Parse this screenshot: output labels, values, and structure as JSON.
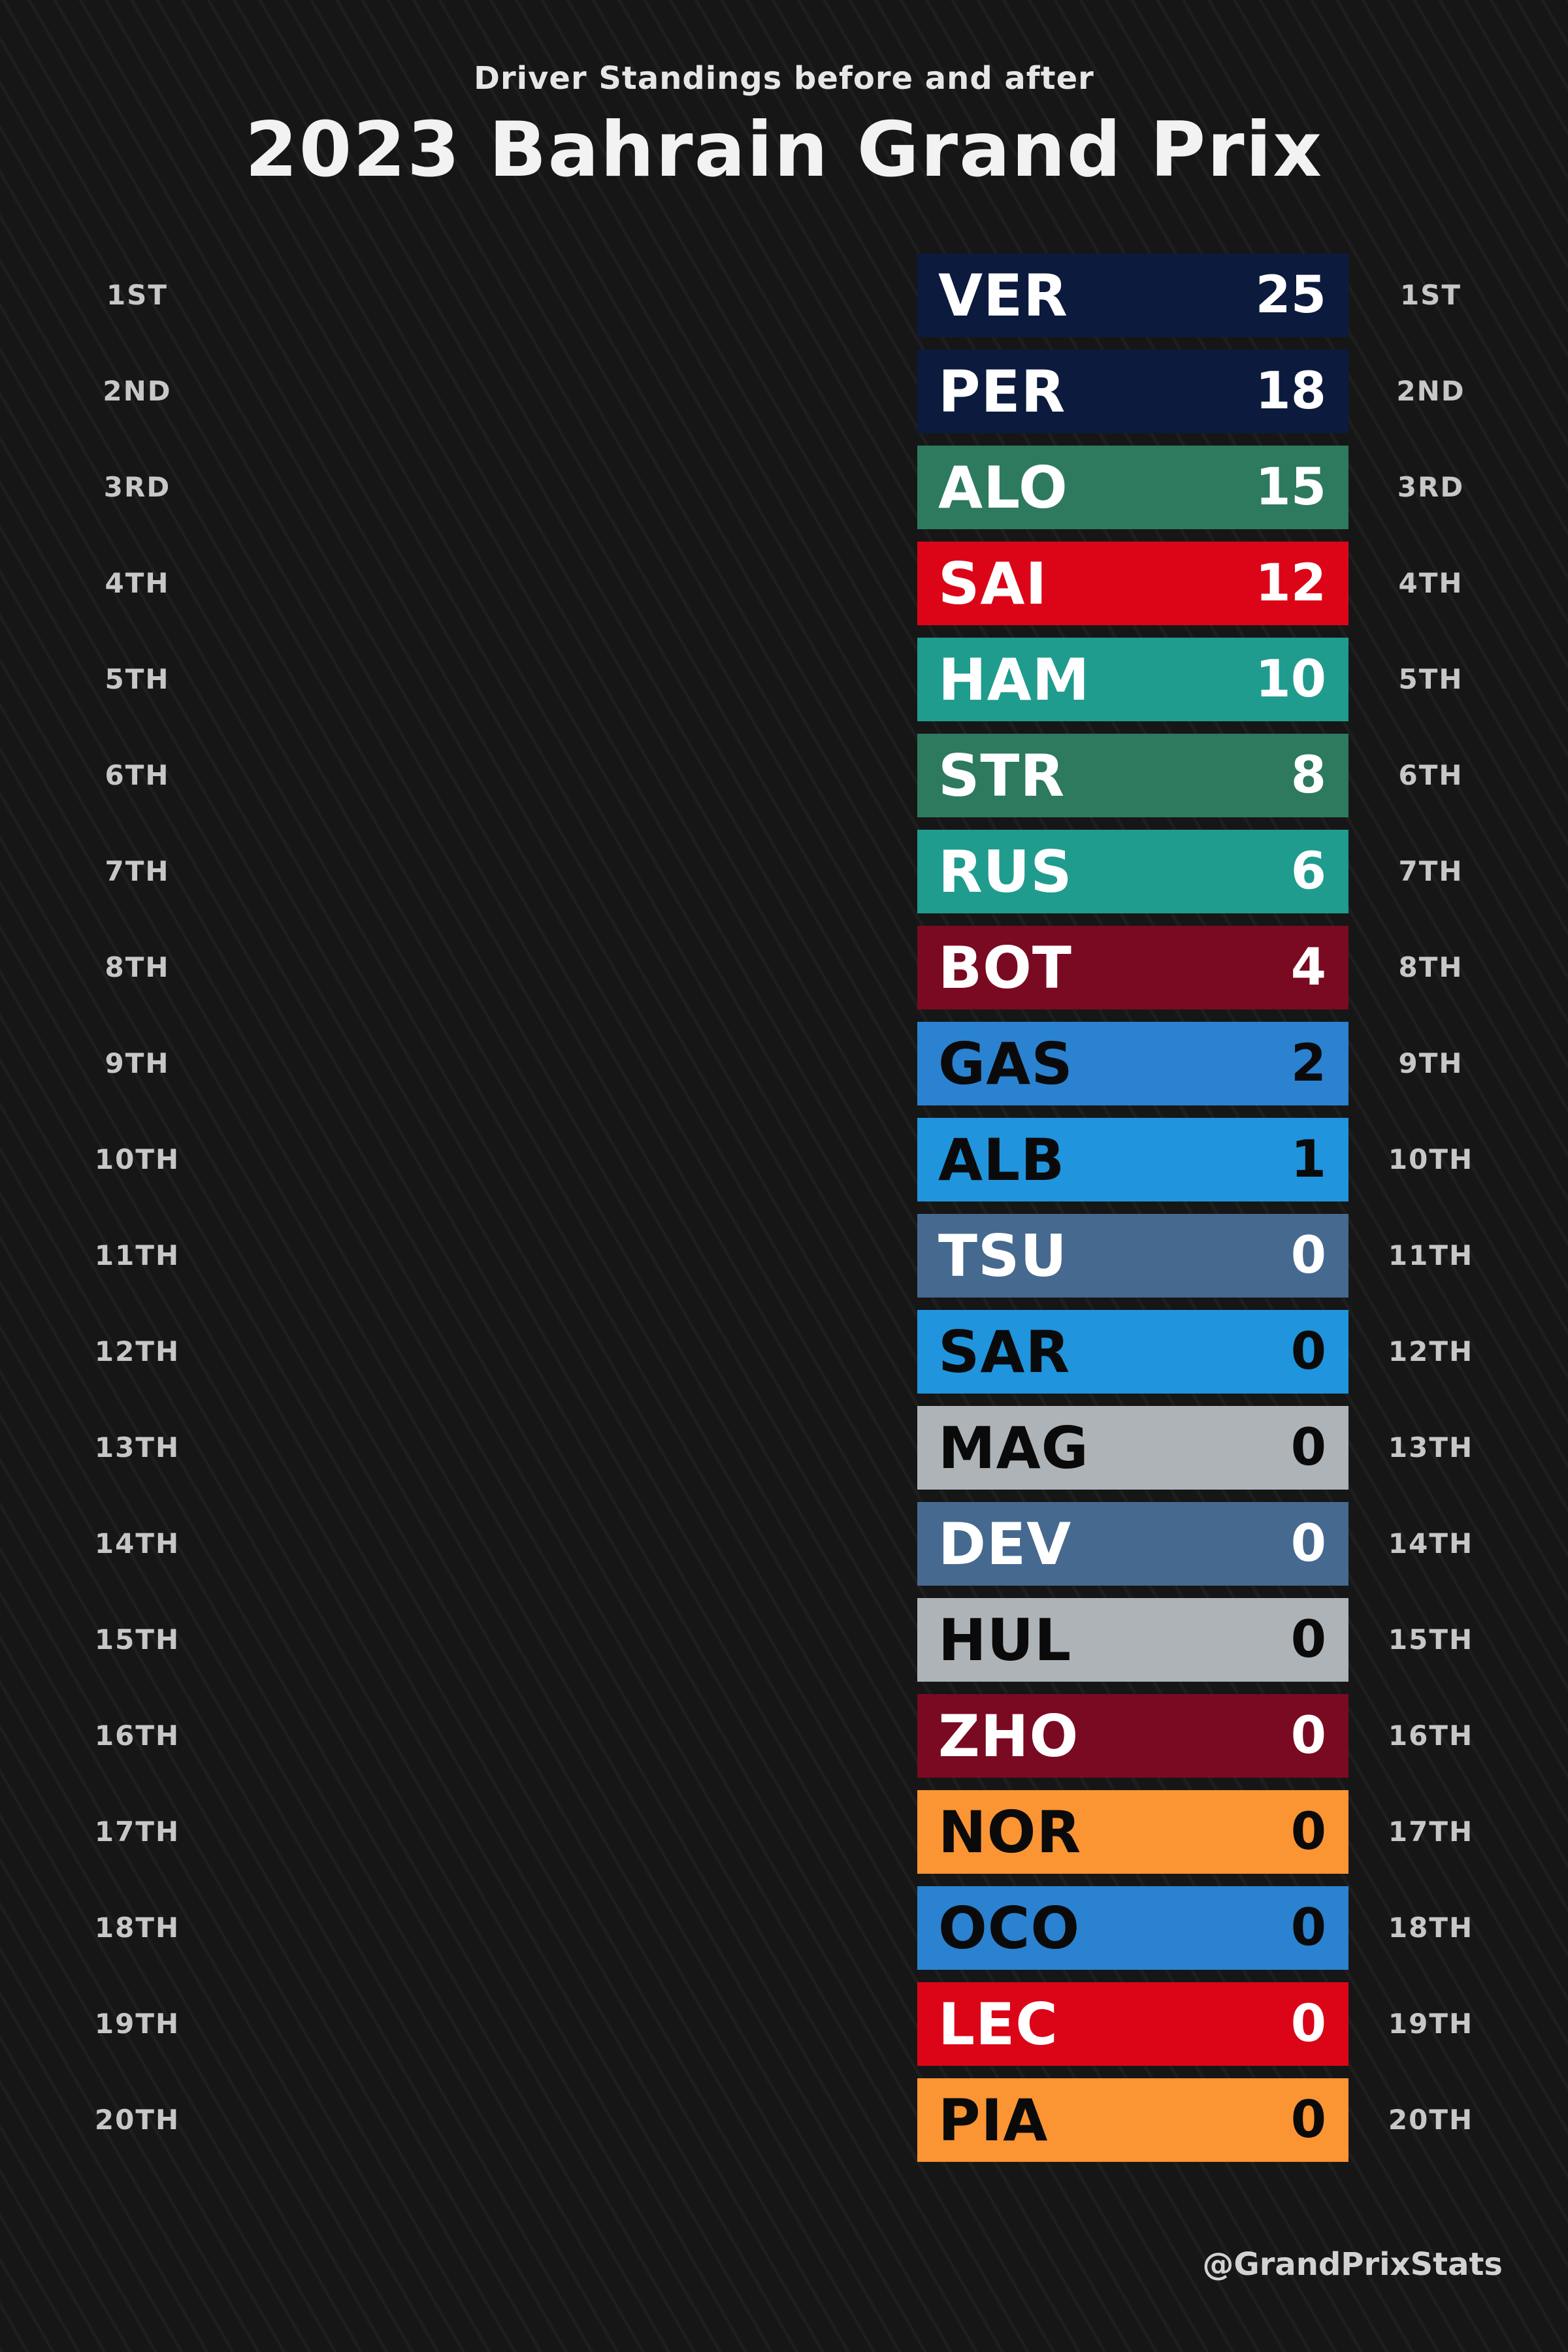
{
  "header": {
    "subtitle": "Driver Standings before and after",
    "title": "2023 Bahrain Grand Prix"
  },
  "credit": "@GrandPrixStats",
  "chart_data": {
    "type": "table",
    "title": "2023 Bahrain Grand Prix",
    "subtitle": "Driver Standings before and after",
    "positions": [
      "1ST",
      "2ND",
      "3RD",
      "4TH",
      "5TH",
      "6TH",
      "7TH",
      "8TH",
      "9TH",
      "10TH",
      "11TH",
      "12TH",
      "13TH",
      "14TH",
      "15TH",
      "16TH",
      "17TH",
      "18TH",
      "19TH",
      "20TH"
    ],
    "drivers": [
      {
        "code": "VER",
        "points": 25,
        "color": "#0c1a3d",
        "text_color": "#ffffff"
      },
      {
        "code": "PER",
        "points": 18,
        "color": "#0c1a3d",
        "text_color": "#ffffff"
      },
      {
        "code": "ALO",
        "points": 15,
        "color": "#2d7a5e",
        "text_color": "#ffffff"
      },
      {
        "code": "SAI",
        "points": 12,
        "color": "#dc0518",
        "text_color": "#ffffff"
      },
      {
        "code": "HAM",
        "points": 10,
        "color": "#1f9c8e",
        "text_color": "#ffffff"
      },
      {
        "code": "STR",
        "points": 8,
        "color": "#2d7a5e",
        "text_color": "#ffffff"
      },
      {
        "code": "RUS",
        "points": 6,
        "color": "#1f9c8e",
        "text_color": "#ffffff"
      },
      {
        "code": "BOT",
        "points": 4,
        "color": "#7a0a22",
        "text_color": "#ffffff"
      },
      {
        "code": "GAS",
        "points": 2,
        "color": "#2a82d0",
        "text_color": "#0a0a0a"
      },
      {
        "code": "ALB",
        "points": 1,
        "color": "#2094dc",
        "text_color": "#0a0a0a"
      },
      {
        "code": "TSU",
        "points": 0,
        "color": "#46698f",
        "text_color": "#ffffff"
      },
      {
        "code": "SAR",
        "points": 0,
        "color": "#2094dc",
        "text_color": "#0a0a0a"
      },
      {
        "code": "MAG",
        "points": 0,
        "color": "#adb3b7",
        "text_color": "#0a0a0a"
      },
      {
        "code": "DEV",
        "points": 0,
        "color": "#46698f",
        "text_color": "#ffffff"
      },
      {
        "code": "HUL",
        "points": 0,
        "color": "#adb3b7",
        "text_color": "#0a0a0a"
      },
      {
        "code": "ZHO",
        "points": 0,
        "color": "#7a0a22",
        "text_color": "#ffffff"
      },
      {
        "code": "NOR",
        "points": 0,
        "color": "#fb9433",
        "text_color": "#0a0a0a"
      },
      {
        "code": "OCO",
        "points": 0,
        "color": "#2a82d0",
        "text_color": "#0a0a0a"
      },
      {
        "code": "LEC",
        "points": 0,
        "color": "#dc0518",
        "text_color": "#ffffff"
      },
      {
        "code": "PIA",
        "points": 0,
        "color": "#fb9433",
        "text_color": "#0a0a0a"
      }
    ]
  }
}
